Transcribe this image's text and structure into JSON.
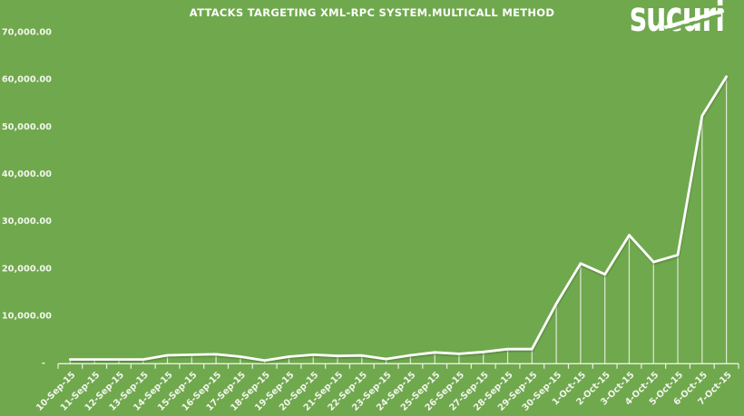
{
  "title": "ATTACKS TARGETING XML-RPC SYSTEM.MULTICALL METHOD",
  "logo": {
    "text": "sucuri",
    "brand": "Sucuri"
  },
  "colors": {
    "background": "#70A84E",
    "line": "#FDFEFB",
    "axis": "#F2F6EC",
    "label_text": "#F2F6EC",
    "title_text": "#FDFEFC"
  },
  "chart_data": {
    "type": "line",
    "title": "ATTACKS TARGETING XML-RPC SYSTEM.MULTICALL METHOD",
    "xlabel": "",
    "ylabel": "",
    "legend": "none",
    "grid": false,
    "drop_lines": true,
    "ylim": [
      0,
      70000
    ],
    "ytick_step": 10000,
    "ytick_labels": [
      "-",
      "10,000.00",
      "20,000.00",
      "30,000.00",
      "40,000.00",
      "50,000.00",
      "60,000.00",
      "70,000.00"
    ],
    "categories": [
      "10-Sep-15",
      "11-Sep-15",
      "12-Sep-15",
      "13-Sep-15",
      "14-Sep-15",
      "15-Sep-15",
      "16-Sep-15",
      "17-Sep-15",
      "18-Sep-15",
      "19-Sep-15",
      "20-Sep-15",
      "21-Sep-15",
      "22-Sep-15",
      "23-Sep-15",
      "24-Sep-15",
      "25-Sep-15",
      "26-Sep-15",
      "27-Sep-15",
      "28-Sep-15",
      "29-Sep-15",
      "30-Sep-15",
      "1-Oct-15",
      "2-Oct-15",
      "3-Oct-15",
      "4-Oct-15",
      "5-Oct-15",
      "6-Oct-15",
      "7-Oct-15"
    ],
    "series": [
      {
        "name": "Attacks targeting system.multicall",
        "values": [
          700,
          700,
          700,
          700,
          1600,
          1700,
          1800,
          1300,
          500,
          1300,
          1700,
          1450,
          1550,
          800,
          1600,
          2200,
          1900,
          2300,
          2900,
          2900,
          12500,
          21000,
          18700,
          27000,
          21300,
          22800,
          52200,
          60500
        ]
      }
    ]
  }
}
